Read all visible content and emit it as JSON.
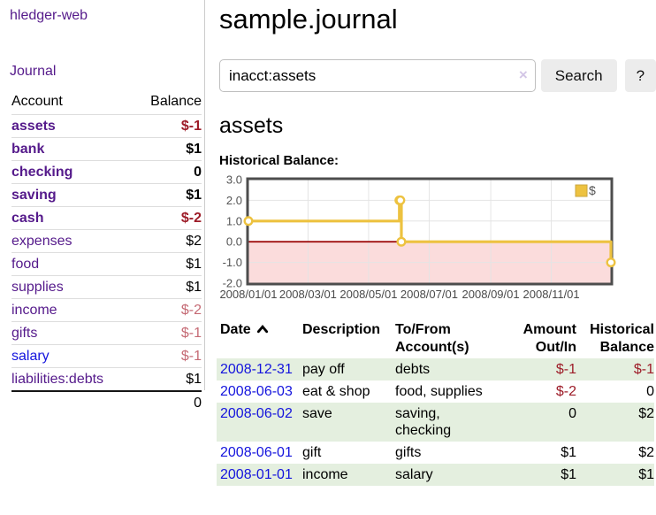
{
  "app_title": "hledger-web",
  "nav": {
    "journal": "Journal"
  },
  "sidebar": {
    "col_account": "Account",
    "col_balance": "Balance",
    "accounts": [
      {
        "name": "assets",
        "balance": "$-1"
      },
      {
        "name": "bank",
        "balance": "$1"
      },
      {
        "name": "checking",
        "balance": "0"
      },
      {
        "name": "saving",
        "balance": "$1"
      },
      {
        "name": "cash",
        "balance": "$-2"
      },
      {
        "name": "expenses",
        "balance": "$2"
      },
      {
        "name": "food",
        "balance": "$1"
      },
      {
        "name": "supplies",
        "balance": "$1"
      },
      {
        "name": "income",
        "balance": "$-2"
      },
      {
        "name": "gifts",
        "balance": "$-1"
      },
      {
        "name": "salary",
        "balance": "$-1"
      },
      {
        "name": "liabilities:debts",
        "balance": "$1"
      }
    ],
    "total": "0"
  },
  "header": {
    "title": "sample.journal"
  },
  "search": {
    "value": "inacct:assets",
    "clear_icon": "×",
    "button": "Search",
    "help": "?"
  },
  "account_page": {
    "title": "assets",
    "section_label": "Historical Balance:"
  },
  "chart_data": {
    "type": "line",
    "style": "step",
    "title": "Historical Balance",
    "series": [
      {
        "name": "$",
        "color": "#edc240",
        "x": [
          "2008-01-01",
          "2008-06-01",
          "2008-06-02",
          "2008-06-03",
          "2008-12-31"
        ],
        "y": [
          1,
          2,
          2,
          0,
          -1
        ]
      }
    ],
    "xlim": [
      "2008-01-01",
      "2008-12-31"
    ],
    "ylim": [
      -2,
      3
    ],
    "yticks": [
      {
        "v": 3,
        "label": "3.0"
      },
      {
        "v": 2,
        "label": "2.0"
      },
      {
        "v": 1,
        "label": "1.0"
      },
      {
        "v": 0,
        "label": "0.0"
      },
      {
        "v": -1,
        "label": "-1.0"
      },
      {
        "v": -2,
        "label": "-2.0"
      }
    ],
    "xticks": [
      {
        "date": "2008-01-01",
        "label": "2008/01/01"
      },
      {
        "date": "2008-03-01",
        "label": "2008/03/01"
      },
      {
        "date": "2008-05-01",
        "label": "2008/05/01"
      },
      {
        "date": "2008-07-01",
        "label": "2008/07/01"
      },
      {
        "date": "2008-09-01",
        "label": "2008/09/01"
      },
      {
        "date": "2008-11-01",
        "label": "2008/11/01"
      }
    ],
    "negative_region": {
      "below": 0,
      "fill": "#fbdcdc",
      "line_color": "#a01010"
    },
    "legend": {
      "position": "top-right",
      "label": "$",
      "swatch_color": "#edc240"
    },
    "grid": true
  },
  "register": {
    "col_date": "Date",
    "col_description": "Description",
    "col_accounts": "To/From Account(s)",
    "col_amount": "Amount Out/In",
    "col_balance": "Historical Balance",
    "rows": [
      {
        "date": "2008-12-31",
        "description": "pay off",
        "accounts": "debts",
        "amount": "$-1",
        "balance": "$-1"
      },
      {
        "date": "2008-06-03",
        "description": "eat & shop",
        "accounts": "food, supplies",
        "amount": "$-2",
        "balance": "0"
      },
      {
        "date": "2008-06-02",
        "description": "save",
        "accounts": "saving, checking",
        "amount": "0",
        "balance": "$2"
      },
      {
        "date": "2008-06-01",
        "description": "gift",
        "accounts": "gifts",
        "amount": "$1",
        "balance": "$2"
      },
      {
        "date": "2008-01-01",
        "description": "income",
        "accounts": "salary",
        "amount": "$1",
        "balance": "$1"
      }
    ]
  }
}
